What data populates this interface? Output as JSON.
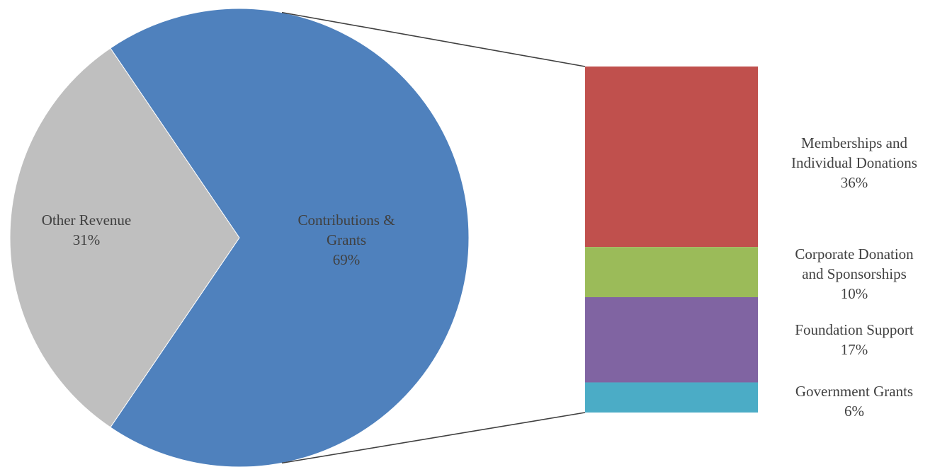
{
  "chart_data": {
    "type": "bar-of-pie",
    "title": "",
    "pie": {
      "slices": [
        {
          "name": "Other Revenue",
          "label": "31%",
          "value": 31,
          "color": "#bfbfbf"
        },
        {
          "name": "Contributions &",
          "name2": "Grants",
          "label": "69%",
          "value": 69,
          "color": "#4f81bd"
        }
      ],
      "exploded_slice": "Contributions & Grants"
    },
    "bar": {
      "segments": [
        {
          "name": "Memberships and",
          "name2": "Individual Donations",
          "label": "36%",
          "value": 36,
          "color": "#c0504d"
        },
        {
          "name": "Corporate Donation",
          "name2": "and Sponsorships",
          "label": "10%",
          "value": 10,
          "color": "#9bbb59"
        },
        {
          "name": "Foundation Support",
          "name2": "",
          "label": "17%",
          "value": 17,
          "color": "#8064a2"
        },
        {
          "name": "Government Grants",
          "name2": "",
          "label": "6%",
          "value": 6,
          "color": "#4bacc6"
        }
      ]
    },
    "legend": "none",
    "grid": false
  }
}
